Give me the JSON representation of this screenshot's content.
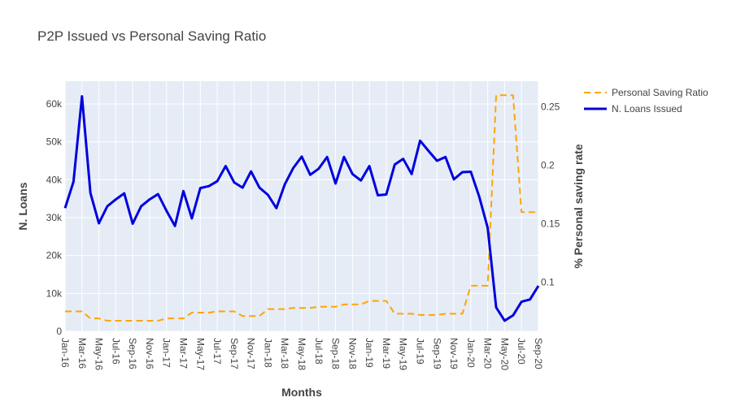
{
  "chart_data": {
    "type": "line",
    "title": "P2P Issued vs Personal Saving Ratio",
    "xlabel": "Months",
    "ylabel_left": "N. Loans",
    "ylabel_right": "% Personal saving rate",
    "grid": true,
    "legend_position": "top-right",
    "x": [
      "Jan-16",
      "Feb-16",
      "Mar-16",
      "Apr-16",
      "May-16",
      "Jun-16",
      "Jul-16",
      "Aug-16",
      "Sep-16",
      "Oct-16",
      "Nov-16",
      "Dec-16",
      "Jan-17",
      "Feb-17",
      "Mar-17",
      "Apr-17",
      "May-17",
      "Jun-17",
      "Jul-17",
      "Aug-17",
      "Sep-17",
      "Oct-17",
      "Nov-17",
      "Dec-17",
      "Jan-18",
      "Feb-18",
      "Mar-18",
      "Apr-18",
      "May-18",
      "Jun-18",
      "Jul-18",
      "Aug-18",
      "Sep-18",
      "Oct-18",
      "Nov-18",
      "Dec-18",
      "Jan-19",
      "Feb-19",
      "Mar-19",
      "Apr-19",
      "May-19",
      "Jun-19",
      "Jul-19",
      "Aug-19",
      "Sep-19",
      "Oct-19",
      "Nov-19",
      "Dec-19",
      "Jan-20",
      "Feb-20",
      "Mar-20",
      "Apr-20",
      "May-20",
      "Jun-20",
      "Jul-20",
      "Aug-20",
      "Sep-20"
    ],
    "x_tick_labels": [
      "Jan-16",
      "Mar-16",
      "May-16",
      "Jul-16",
      "Sep-16",
      "Nov-16",
      "Jan-17",
      "Mar-17",
      "May-17",
      "Jul-17",
      "Sep-17",
      "Nov-17",
      "Jan-18",
      "Mar-18",
      "May-18",
      "Jul-18",
      "Sep-18",
      "Nov-18",
      "Jan-19",
      "Mar-19",
      "May-19",
      "Jul-19",
      "Sep-19",
      "Nov-19",
      "Jan-20",
      "Mar-20",
      "May-20",
      "Jul-20",
      "Sep-20"
    ],
    "y_left": {
      "range": [
        0,
        66000
      ],
      "ticks": [
        0,
        10000,
        20000,
        30000,
        40000,
        50000,
        60000
      ],
      "tick_labels": [
        "0",
        "10k",
        "20k",
        "30k",
        "40k",
        "50k",
        "60k"
      ]
    },
    "y_right": {
      "range": [
        0.058,
        0.272
      ],
      "ticks": [
        0.1,
        0.15,
        0.2,
        0.25
      ],
      "tick_labels": [
        "0.1",
        "0.15",
        "0.2",
        "0.25"
      ]
    },
    "series": [
      {
        "name": "Personal Saving Ratio",
        "axis": "right",
        "color": "#FFA500",
        "dash": "dashed",
        "values": [
          0.075,
          0.075,
          0.075,
          0.069,
          0.069,
          0.067,
          0.067,
          0.067,
          0.067,
          0.067,
          0.067,
          0.067,
          0.069,
          0.069,
          0.069,
          0.074,
          0.074,
          0.074,
          0.075,
          0.075,
          0.075,
          0.071,
          0.071,
          0.071,
          0.077,
          0.077,
          0.077,
          0.078,
          0.078,
          0.078,
          0.079,
          0.079,
          0.079,
          0.081,
          0.081,
          0.081,
          0.084,
          0.084,
          0.084,
          0.073,
          0.073,
          0.073,
          0.072,
          0.072,
          0.072,
          0.073,
          0.073,
          0.073,
          0.097,
          0.097,
          0.097,
          0.26,
          0.26,
          0.26,
          0.16,
          0.16,
          0.16
        ]
      },
      {
        "name": "N. Loans Issued",
        "axis": "left",
        "color": "#0000DD",
        "dash": "solid",
        "values": [
          32500,
          39500,
          62000,
          36500,
          28500,
          33000,
          34800,
          36400,
          28400,
          33000,
          34800,
          36200,
          31800,
          27800,
          37000,
          29800,
          37800,
          38300,
          39600,
          43600,
          39300,
          37900,
          42200,
          37900,
          36000,
          32500,
          38800,
          43100,
          46100,
          41300,
          42900,
          46000,
          39000,
          46000,
          41500,
          39800,
          43600,
          35900,
          36100,
          44000,
          45500,
          41500,
          50300,
          47600,
          45000,
          46000,
          40100,
          42000,
          42100,
          35500,
          27300,
          6300,
          2800,
          4200,
          7800,
          8400,
          12000
        ]
      }
    ]
  }
}
